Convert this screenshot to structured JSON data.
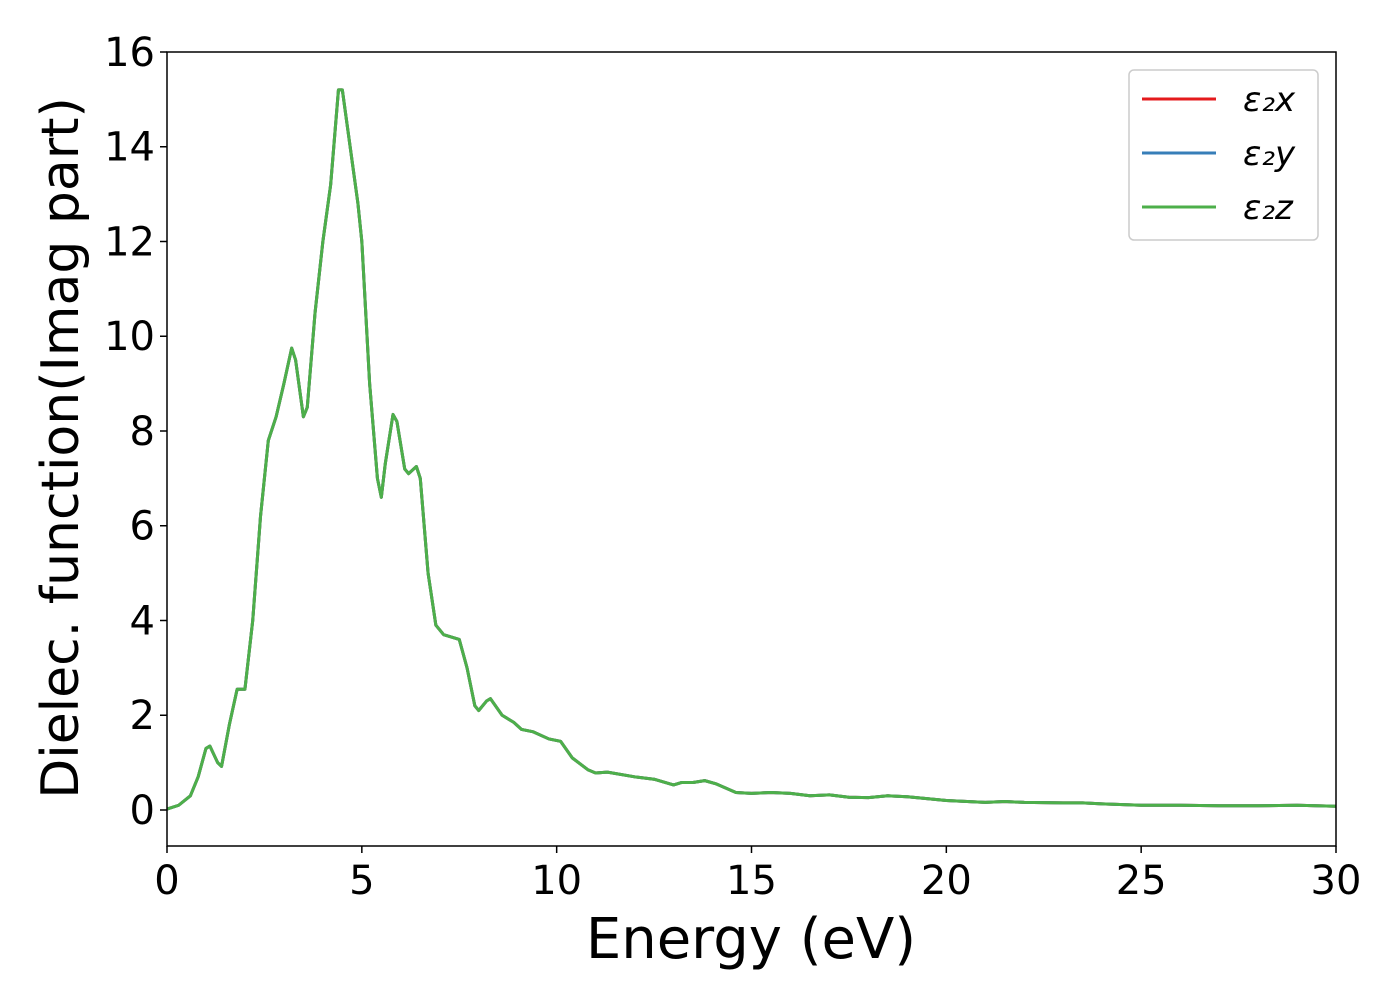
{
  "chart_data": {
    "type": "line",
    "xlabel": "Energy (eV)",
    "ylabel": "Dielec. function(Imag part)",
    "xlim": [
      0,
      30
    ],
    "xticks": [
      0,
      5,
      10,
      15,
      20,
      25,
      30
    ],
    "ylim": [
      -0.76,
      16
    ],
    "yticks": [
      0,
      2,
      4,
      6,
      8,
      10,
      12,
      14,
      16
    ],
    "legend": "upper right",
    "x": [
      0,
      0.3,
      0.6,
      0.8,
      1.0,
      1.1,
      1.3,
      1.4,
      1.6,
      1.8,
      2.0,
      2.2,
      2.4,
      2.6,
      2.8,
      3.0,
      3.2,
      3.3,
      3.5,
      3.6,
      3.8,
      4.0,
      4.2,
      4.4,
      4.5,
      4.7,
      4.9,
      5.0,
      5.2,
      5.4,
      5.5,
      5.6,
      5.8,
      5.9,
      6.1,
      6.2,
      6.4,
      6.5,
      6.7,
      6.9,
      7.1,
      7.3,
      7.5,
      7.7,
      7.9,
      8.0,
      8.2,
      8.3,
      8.6,
      8.9,
      9.1,
      9.4,
      9.8,
      10.1,
      10.4,
      10.8,
      11.0,
      11.3,
      12,
      12.5,
      13,
      13.2,
      13.5,
      13.8,
      14.1,
      14.6,
      15,
      15.5,
      16,
      16.5,
      17,
      17.5,
      18,
      18.5,
      19,
      20,
      21,
      21.5,
      22,
      23,
      23.5,
      24,
      25,
      26,
      27,
      28,
      29,
      30
    ],
    "series": [
      {
        "name": "ε₂x",
        "color": "#e41a1c",
        "values": [
          0.02,
          0.1,
          0.3,
          0.7,
          1.3,
          1.35,
          1.0,
          0.92,
          1.8,
          2.55,
          2.55,
          4.0,
          6.2,
          7.8,
          8.3,
          9.0,
          9.75,
          9.5,
          8.3,
          8.5,
          10.5,
          12.0,
          13.2,
          15.2,
          15.2,
          14.0,
          12.8,
          12.0,
          9.0,
          7.0,
          6.6,
          7.3,
          8.35,
          8.2,
          7.2,
          7.1,
          7.25,
          7.0,
          5.0,
          3.9,
          3.7,
          3.65,
          3.6,
          3.0,
          2.2,
          2.1,
          2.3,
          2.35,
          2.0,
          1.85,
          1.7,
          1.65,
          1.5,
          1.45,
          1.1,
          0.85,
          0.78,
          0.8,
          0.7,
          0.65,
          0.53,
          0.58,
          0.58,
          0.62,
          0.55,
          0.37,
          0.35,
          0.37,
          0.35,
          0.3,
          0.32,
          0.27,
          0.26,
          0.3,
          0.28,
          0.2,
          0.16,
          0.18,
          0.16,
          0.15,
          0.15,
          0.13,
          0.1,
          0.1,
          0.09,
          0.09,
          0.1,
          0.08
        ]
      },
      {
        "name": "ε₂y",
        "color": "#377eb8",
        "values": [
          0.02,
          0.1,
          0.3,
          0.7,
          1.3,
          1.35,
          1.0,
          0.92,
          1.8,
          2.55,
          2.55,
          4.0,
          6.2,
          7.8,
          8.3,
          9.0,
          9.75,
          9.5,
          8.3,
          8.5,
          10.5,
          12.0,
          13.2,
          15.2,
          15.2,
          14.0,
          12.8,
          12.0,
          9.0,
          7.0,
          6.6,
          7.3,
          8.35,
          8.2,
          7.2,
          7.1,
          7.25,
          7.0,
          5.0,
          3.9,
          3.7,
          3.65,
          3.6,
          3.0,
          2.2,
          2.1,
          2.3,
          2.35,
          2.0,
          1.85,
          1.7,
          1.65,
          1.5,
          1.45,
          1.1,
          0.85,
          0.78,
          0.8,
          0.7,
          0.65,
          0.53,
          0.58,
          0.58,
          0.62,
          0.55,
          0.37,
          0.35,
          0.37,
          0.35,
          0.3,
          0.32,
          0.27,
          0.26,
          0.3,
          0.28,
          0.2,
          0.16,
          0.18,
          0.16,
          0.15,
          0.15,
          0.13,
          0.1,
          0.1,
          0.09,
          0.09,
          0.1,
          0.08
        ]
      },
      {
        "name": "ε₂z",
        "color": "#4daf4a",
        "values": [
          0.02,
          0.1,
          0.3,
          0.7,
          1.3,
          1.35,
          1.0,
          0.92,
          1.8,
          2.55,
          2.55,
          4.0,
          6.2,
          7.8,
          8.3,
          9.0,
          9.75,
          9.5,
          8.3,
          8.5,
          10.5,
          12.0,
          13.2,
          15.2,
          15.2,
          14.0,
          12.8,
          12.0,
          9.0,
          7.0,
          6.6,
          7.3,
          8.35,
          8.2,
          7.2,
          7.1,
          7.25,
          7.0,
          5.0,
          3.9,
          3.7,
          3.65,
          3.6,
          3.0,
          2.2,
          2.1,
          2.3,
          2.35,
          2.0,
          1.85,
          1.7,
          1.65,
          1.5,
          1.45,
          1.1,
          0.85,
          0.78,
          0.8,
          0.7,
          0.65,
          0.53,
          0.58,
          0.58,
          0.62,
          0.55,
          0.37,
          0.35,
          0.37,
          0.35,
          0.3,
          0.32,
          0.27,
          0.26,
          0.3,
          0.28,
          0.2,
          0.16,
          0.18,
          0.16,
          0.15,
          0.15,
          0.13,
          0.1,
          0.1,
          0.09,
          0.09,
          0.1,
          0.08
        ]
      }
    ]
  }
}
